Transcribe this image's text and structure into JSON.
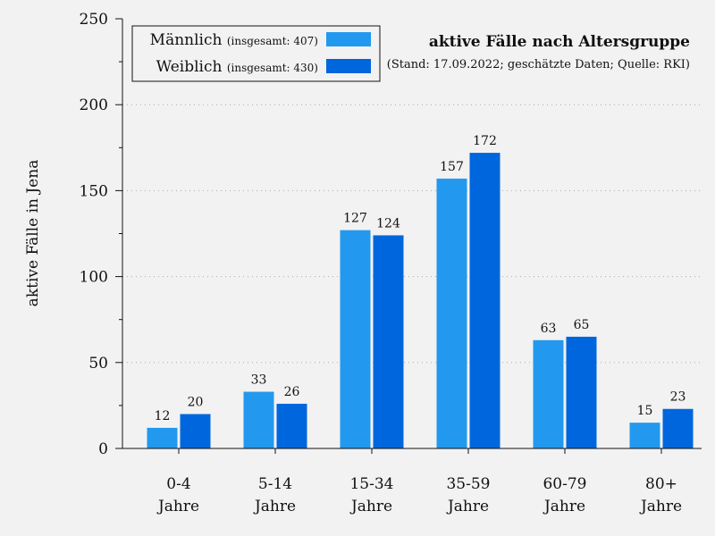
{
  "chart_data": {
    "type": "bar",
    "title": "aktive Fälle nach Altersgruppe",
    "subtitle": "(Stand: 17.09.2022; geschätzte Daten; Quelle: RKI)",
    "ylabel": "aktive Fälle in Jena",
    "xlabel": "",
    "ylim": [
      0,
      250
    ],
    "yticks": [
      "0",
      "50",
      "100",
      "150",
      "200",
      "250"
    ],
    "grid": "horizontal dotted",
    "legend_position": "top-left",
    "categories": [
      {
        "line1": "0-4",
        "line2": "Jahre"
      },
      {
        "line1": "5-14",
        "line2": "Jahre"
      },
      {
        "line1": "15-34",
        "line2": "Jahre"
      },
      {
        "line1": "35-59",
        "line2": "Jahre"
      },
      {
        "line1": "60-79",
        "line2": "Jahre"
      },
      {
        "line1": "80+",
        "line2": "Jahre"
      }
    ],
    "series": [
      {
        "name": "Männlich",
        "note": "(insgesamt: 407)",
        "color": "#2299ee",
        "values": [
          12,
          33,
          127,
          157,
          63,
          15
        ]
      },
      {
        "name": "Weiblich",
        "note": "(insgesamt: 430)",
        "color": "#0066dd",
        "values": [
          20,
          26,
          124,
          172,
          65,
          23
        ]
      }
    ]
  }
}
